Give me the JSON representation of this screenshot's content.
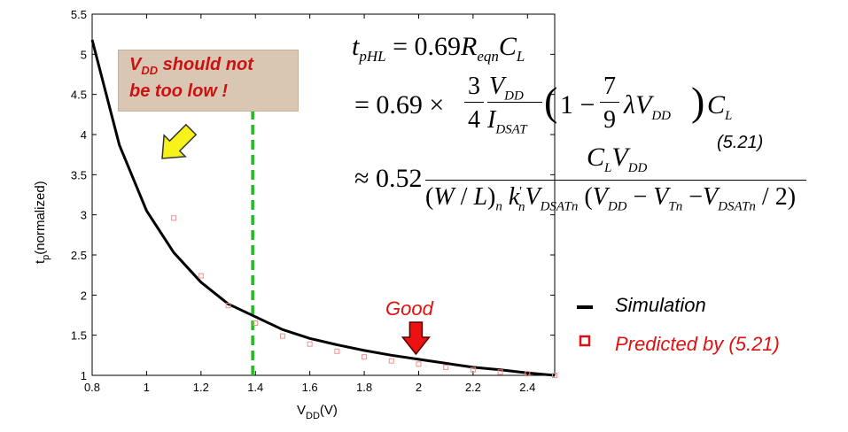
{
  "chart_data": {
    "type": "line",
    "xlabel": "V",
    "xlabel_sub": "DD",
    "xlabel_suffix": "(V)",
    "ylabel": "t",
    "ylabel_sub": "p",
    "ylabel_suffix": "(normalized)",
    "xlim": [
      0.8,
      2.5
    ],
    "ylim": [
      1,
      5.5
    ],
    "xticks": [
      0.8,
      1,
      1.2,
      1.4,
      1.6,
      1.8,
      2,
      2.2,
      2.4
    ],
    "xtick_labels": [
      "0.8",
      "1",
      "1.2",
      "1.4",
      "1.6",
      "1.8",
      "2",
      "2.2",
      "2.4"
    ],
    "yticks": [
      1,
      1.5,
      2,
      2.5,
      3,
      3.5,
      4,
      4.5,
      5,
      5.5
    ],
    "ytick_labels": [
      "1",
      "1.5",
      "2",
      "2.5",
      "3",
      "3.5",
      "4",
      "4.5",
      "5",
      "5.5"
    ],
    "grid": false,
    "legend_position": "right",
    "series": [
      {
        "name": "Simulation",
        "style": "line",
        "color": "#000000",
        "x": [
          0.8,
          0.9,
          1.0,
          1.1,
          1.2,
          1.3,
          1.4,
          1.5,
          1.6,
          1.7,
          1.8,
          1.9,
          2.0,
          2.1,
          2.2,
          2.3,
          2.4,
          2.5
        ],
        "y": [
          5.18,
          3.87,
          3.05,
          2.53,
          2.16,
          1.89,
          1.73,
          1.57,
          1.46,
          1.38,
          1.31,
          1.25,
          1.2,
          1.15,
          1.1,
          1.07,
          1.03,
          1.0
        ]
      },
      {
        "name": "Predicted by (5.21)",
        "style": "marker",
        "color": "#dd1111",
        "x": [
          1.1,
          1.2,
          1.3,
          1.4,
          1.5,
          1.6,
          1.7,
          1.8,
          1.9,
          2.0,
          2.1,
          2.2,
          2.3,
          2.4,
          2.5
        ],
        "y": [
          2.96,
          2.24,
          1.87,
          1.65,
          1.49,
          1.39,
          1.3,
          1.23,
          1.18,
          1.14,
          1.1,
          1.07,
          1.04,
          1.02,
          1.0
        ]
      }
    ],
    "annotations": {
      "vline_x": 1.39,
      "vline_color": "#22bb22",
      "low_vdd_note": {
        "line1_main": "V",
        "line1_sub": "DD",
        "line1_rest": " should not",
        "line2": "be too low !"
      },
      "good_label": "Good",
      "good_arrow_x": 1.99,
      "equation_number": "(5.21)"
    }
  },
  "formula": {
    "line1": "t_pHL = 0.69 R_eqn C_L",
    "line2": "= 0.69 × (3/4) (V_DD / I_DSAT) (1 − (7/9) λ V_DD) C_L",
    "line3": "≈ 0.52 C_L V_DD / ((W/L)_n k'_n V_DSATn (V_DD − V_Tn − V_DSATn / 2))"
  },
  "colors": {
    "simulation": "#000000",
    "predicted": "#dd1111",
    "note_bg": "#d9c6b3",
    "note_text": "#cc1111",
    "yellow_arrow": "#f7f21a",
    "red_arrow": "#ee1111",
    "dashed_line": "#22bb22"
  }
}
